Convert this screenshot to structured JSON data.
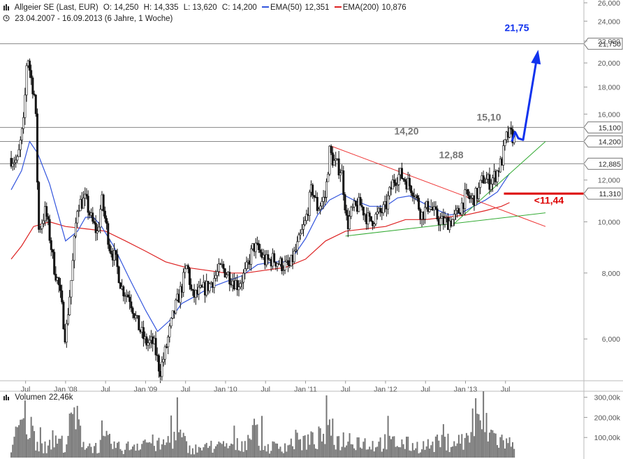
{
  "header": {
    "instrument": "Allgeier SE (Last, EUR)",
    "open": "O: 14,250",
    "high": "H: 14,335",
    "low": "L: 13,620",
    "close": "C: 14,200",
    "ema50_label": "EMA(50)",
    "ema50_value": "12,351",
    "ema200_label": "EMA(200)",
    "ema200_value": "10,876",
    "date_range": "23.04.2007 - 16.09.2013 (6 Jahre, 1 Woche)"
  },
  "volume": {
    "label": "Volumen",
    "value": "22,46k",
    "ticks": [
      "300,00k",
      "200,00k",
      "100,00k"
    ]
  },
  "colors": {
    "ema50": "#3355dd",
    "ema200": "#dd2222",
    "price": "#111111",
    "resistance": "#ee3333",
    "support": "#33aa33",
    "target": "#1133ee",
    "stop": "#dd0000",
    "level_line": "#888888"
  },
  "chart_data": {
    "type": "candlestick",
    "x_tick_labels": [
      "Jul",
      "Jan '08",
      "Jul",
      "Jan '09",
      "Jul",
      "Jan '10",
      "Jul",
      "Jan '11",
      "Jul",
      "Jan '12",
      "Jul",
      "Jan '13",
      "Jul"
    ],
    "y_tick_labels": [
      "26,000",
      "24,000",
      "22,000",
      "20,000",
      "18,000",
      "16,000",
      "12,000",
      "10,000",
      "8,000",
      "6,000"
    ],
    "ylim": [
      5.0,
      26.0
    ],
    "y_scale": "log",
    "levels": [
      {
        "label": "21,750",
        "value": 21.75
      },
      {
        "label": "15,100",
        "value": 15.1
      },
      {
        "label": "14,200",
        "value": 14.2
      },
      {
        "label": "12,885",
        "value": 12.885
      },
      {
        "label": "11,310",
        "value": 11.31
      }
    ],
    "annotations": [
      {
        "text": "21,75",
        "value": 21.75
      },
      {
        "text": "15,10",
        "value": 15.1
      },
      {
        "text": "14,20",
        "value": 14.2
      },
      {
        "text": "12,88",
        "value": 12.88
      },
      {
        "text": "<11,44",
        "value": 11.44
      }
    ],
    "price_path": [
      [
        2007.32,
        13.2
      ],
      [
        2007.4,
        13.0
      ],
      [
        2007.48,
        15.5
      ],
      [
        2007.52,
        21.0
      ],
      [
        2007.56,
        19.0
      ],
      [
        2007.62,
        17.0
      ],
      [
        2007.66,
        9.6
      ],
      [
        2007.75,
        10.5
      ],
      [
        2007.85,
        8.3
      ],
      [
        2007.92,
        7.5
      ],
      [
        2008.0,
        6.0
      ],
      [
        2008.08,
        8.0
      ],
      [
        2008.15,
        10.8
      ],
      [
        2008.25,
        11.0
      ],
      [
        2008.33,
        10.0
      ],
      [
        2008.4,
        9.5
      ],
      [
        2008.45,
        11.0
      ],
      [
        2008.55,
        9.0
      ],
      [
        2008.62,
        8.5
      ],
      [
        2008.7,
        7.5
      ],
      [
        2008.8,
        7.2
      ],
      [
        2008.9,
        6.4
      ],
      [
        2009.0,
        5.9
      ],
      [
        2009.1,
        5.9
      ],
      [
        2009.18,
        5.2
      ],
      [
        2009.25,
        5.7
      ],
      [
        2009.35,
        6.7
      ],
      [
        2009.45,
        7.5
      ],
      [
        2009.52,
        8.3
      ],
      [
        2009.58,
        7.2
      ],
      [
        2009.65,
        7.3
      ],
      [
        2009.8,
        7.6
      ],
      [
        2009.95,
        8.2
      ],
      [
        2010.05,
        7.9
      ],
      [
        2010.15,
        7.6
      ],
      [
        2010.25,
        8.0
      ],
      [
        2010.35,
        9.0
      ],
      [
        2010.42,
        8.8
      ],
      [
        2010.5,
        8.4
      ],
      [
        2010.6,
        8.5
      ],
      [
        2010.7,
        8.3
      ],
      [
        2010.8,
        8.2
      ],
      [
        2010.9,
        9.0
      ],
      [
        2011.0,
        10.0
      ],
      [
        2011.08,
        11.6
      ],
      [
        2011.15,
        10.6
      ],
      [
        2011.25,
        11.2
      ],
      [
        2011.3,
        13.6
      ],
      [
        2011.35,
        13.0
      ],
      [
        2011.45,
        12.5
      ],
      [
        2011.52,
        9.8
      ],
      [
        2011.58,
        10.5
      ],
      [
        2011.68,
        10.8
      ],
      [
        2011.8,
        10.0
      ],
      [
        2011.9,
        10.3
      ],
      [
        2012.0,
        10.6
      ],
      [
        2012.1,
        12.0
      ],
      [
        2012.18,
        12.3
      ],
      [
        2012.25,
        12.0
      ],
      [
        2012.35,
        11.5
      ],
      [
        2012.45,
        10.3
      ],
      [
        2012.55,
        10.8
      ],
      [
        2012.62,
        10.3
      ],
      [
        2012.7,
        10.0
      ],
      [
        2012.78,
        10.0
      ],
      [
        2012.85,
        10.1
      ],
      [
        2012.92,
        10.5
      ],
      [
        2013.0,
        11.2
      ],
      [
        2013.08,
        11.0
      ],
      [
        2013.15,
        11.3
      ],
      [
        2013.22,
        12.1
      ],
      [
        2013.3,
        11.9
      ],
      [
        2013.38,
        12.3
      ],
      [
        2013.45,
        13.0
      ],
      [
        2013.52,
        14.6
      ],
      [
        2013.58,
        14.6
      ],
      [
        2013.62,
        14.2
      ]
    ],
    "ema50": [
      [
        2007.32,
        11.5
      ],
      [
        2007.45,
        12.5
      ],
      [
        2007.55,
        14.2
      ],
      [
        2007.65,
        13.5
      ],
      [
        2007.8,
        11.8
      ],
      [
        2008.0,
        9.2
      ],
      [
        2008.15,
        9.6
      ],
      [
        2008.25,
        10.2
      ],
      [
        2008.35,
        10.2
      ],
      [
        2008.45,
        9.8
      ],
      [
        2008.6,
        9.0
      ],
      [
        2008.8,
        7.8
      ],
      [
        2009.0,
        6.8
      ],
      [
        2009.15,
        6.2
      ],
      [
        2009.3,
        6.5
      ],
      [
        2009.45,
        7.0
      ],
      [
        2009.6,
        7.2
      ],
      [
        2009.8,
        7.5
      ],
      [
        2010.0,
        7.7
      ],
      [
        2010.2,
        7.9
      ],
      [
        2010.4,
        8.3
      ],
      [
        2010.6,
        8.4
      ],
      [
        2010.8,
        8.4
      ],
      [
        2011.0,
        9.3
      ],
      [
        2011.15,
        10.3
      ],
      [
        2011.3,
        11.0
      ],
      [
        2011.45,
        11.3
      ],
      [
        2011.6,
        11.0
      ],
      [
        2011.8,
        10.7
      ],
      [
        2012.0,
        10.7
      ],
      [
        2012.15,
        11.1
      ],
      [
        2012.3,
        11.2
      ],
      [
        2012.45,
        10.9
      ],
      [
        2012.6,
        10.6
      ],
      [
        2012.8,
        10.3
      ],
      [
        2012.95,
        10.4
      ],
      [
        2013.1,
        10.7
      ],
      [
        2013.25,
        11.0
      ],
      [
        2013.4,
        11.4
      ],
      [
        2013.55,
        12.351
      ]
    ],
    "ema200": [
      [
        2007.32,
        8.5
      ],
      [
        2007.45,
        9.0
      ],
      [
        2007.6,
        9.8
      ],
      [
        2007.8,
        10.0
      ],
      [
        2008.0,
        9.8
      ],
      [
        2008.25,
        9.7
      ],
      [
        2008.5,
        9.6
      ],
      [
        2008.75,
        9.2
      ],
      [
        2009.0,
        8.8
      ],
      [
        2009.25,
        8.4
      ],
      [
        2009.5,
        8.2
      ],
      [
        2009.75,
        8.1
      ],
      [
        2010.0,
        8.0
      ],
      [
        2010.25,
        8.0
      ],
      [
        2010.5,
        8.1
      ],
      [
        2010.75,
        8.2
      ],
      [
        2011.0,
        8.5
      ],
      [
        2011.25,
        9.2
      ],
      [
        2011.5,
        9.6
      ],
      [
        2011.75,
        9.7
      ],
      [
        2012.0,
        9.8
      ],
      [
        2012.25,
        10.1
      ],
      [
        2012.5,
        10.1
      ],
      [
        2012.75,
        10.2
      ],
      [
        2013.0,
        10.3
      ],
      [
        2013.25,
        10.5
      ],
      [
        2013.45,
        10.7
      ],
      [
        2013.55,
        10.876
      ]
    ],
    "trendlines": [
      {
        "name": "resistance",
        "from": [
          2011.33,
          13.9
        ],
        "to": [
          2014.0,
          9.8
        ]
      },
      {
        "name": "support",
        "from": [
          2011.5,
          9.4
        ],
        "to": [
          2014.0,
          10.4
        ]
      },
      {
        "name": "uptrend",
        "from": [
          2012.85,
          9.9
        ],
        "to": [
          2014.0,
          14.2
        ]
      }
    ],
    "projection": [
      [
        2013.58,
        14.2
      ],
      [
        2013.62,
        14.8
      ],
      [
        2013.66,
        14.4
      ],
      [
        2013.72,
        14.3
      ],
      [
        2013.9,
        20.8
      ]
    ],
    "volume_profile": [
      [
        2007.32,
        80
      ],
      [
        2007.5,
        280
      ],
      [
        2007.6,
        160
      ],
      [
        2007.75,
        60
      ],
      [
        2007.9,
        120
      ],
      [
        2008.0,
        90
      ],
      [
        2008.1,
        300
      ],
      [
        2008.25,
        90
      ],
      [
        2008.4,
        70
      ],
      [
        2008.5,
        120
      ],
      [
        2008.7,
        60
      ],
      [
        2008.9,
        100
      ],
      [
        2009.0,
        120
      ],
      [
        2009.2,
        80
      ],
      [
        2009.4,
        170
      ],
      [
        2009.55,
        60
      ],
      [
        2009.8,
        70
      ],
      [
        2010.0,
        80
      ],
      [
        2010.2,
        90
      ],
      [
        2010.35,
        190
      ],
      [
        2010.5,
        70
      ],
      [
        2010.7,
        80
      ],
      [
        2010.9,
        110
      ],
      [
        2011.1,
        120
      ],
      [
        2011.3,
        170
      ],
      [
        2011.4,
        120
      ],
      [
        2011.6,
        140
      ],
      [
        2011.8,
        90
      ],
      [
        2012.0,
        110
      ],
      [
        2012.2,
        100
      ],
      [
        2012.4,
        80
      ],
      [
        2012.6,
        90
      ],
      [
        2012.8,
        110
      ],
      [
        2013.0,
        120
      ],
      [
        2013.2,
        240
      ],
      [
        2013.4,
        130
      ],
      [
        2013.55,
        100
      ],
      [
        2013.62,
        60
      ]
    ]
  }
}
